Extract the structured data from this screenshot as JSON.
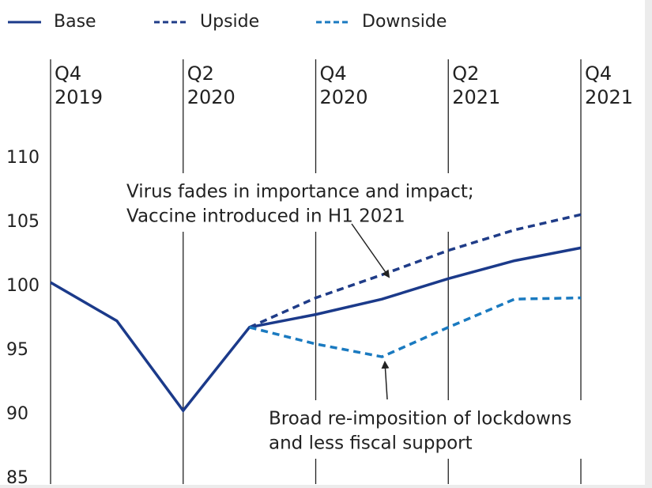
{
  "chart_data": {
    "type": "line",
    "categories": [
      "Q4 2019",
      null,
      "Q2 2020",
      null,
      "Q4 2020",
      null,
      "Q2 2021",
      null,
      "Q4 2021"
    ],
    "series": [
      {
        "name": "Base",
        "color": "#1b3a8a",
        "dash": false,
        "values": [
          100.3,
          97.3,
          90.3,
          96.8,
          97.8,
          99.0,
          100.6,
          102.0,
          103.0
        ]
      },
      {
        "name": "Upside",
        "color": "#1f3c88",
        "dash": true,
        "values": [
          null,
          null,
          null,
          96.8,
          99.1,
          100.9,
          102.8,
          104.4,
          105.6
        ]
      },
      {
        "name": "Downside",
        "color": "#1a7ac0",
        "dash": true,
        "values": [
          null,
          null,
          null,
          96.8,
          95.5,
          94.5,
          96.8,
          99.0,
          99.1
        ]
      }
    ],
    "ylim": [
      85,
      110
    ],
    "yticks": [
      85,
      90,
      95,
      100,
      105,
      110
    ],
    "annotations": [
      {
        "lines": [
          "Virus fades in importance and impact;",
          "Vaccine introduced in H1 2021"
        ]
      },
      {
        "lines": [
          "Broad re-imposition of lockdowns",
          "and less fiscal support"
        ]
      }
    ],
    "legend": "top"
  }
}
